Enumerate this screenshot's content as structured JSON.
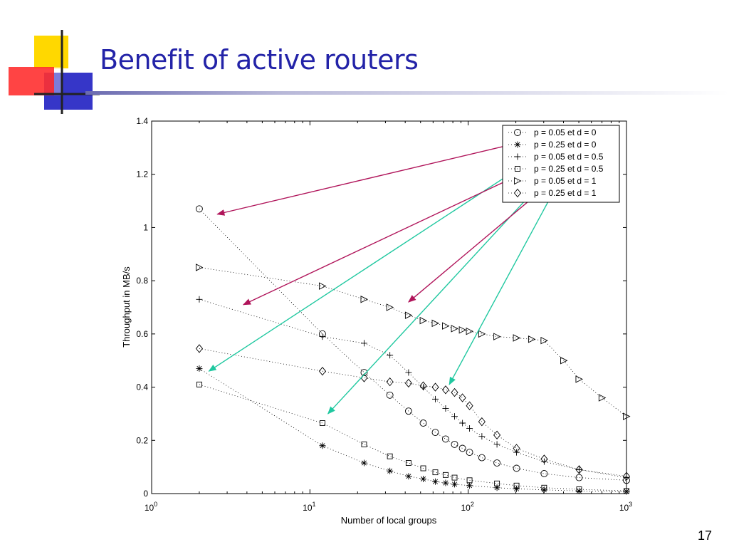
{
  "slide": {
    "title": "Benefit of active routers",
    "number": "17"
  },
  "chart_data": {
    "type": "scatter",
    "title": "",
    "xlabel": "Number of local groups",
    "ylabel": "Throughput in MB/s",
    "xscale": "log",
    "xlim": [
      1,
      1000
    ],
    "ylim": [
      0,
      1.4
    ],
    "yticks": [
      "0",
      "0.2",
      "0.4",
      "0.6",
      "0.8",
      "1",
      "1.2",
      "1.4"
    ],
    "xticks": [
      {
        "base": "10",
        "exp": "0"
      },
      {
        "base": "10",
        "exp": "1"
      },
      {
        "base": "10",
        "exp": "2"
      },
      {
        "base": "10",
        "exp": "3"
      }
    ],
    "grid": false,
    "legend_position": "top-right",
    "series": [
      {
        "name": "p = 0.05 et d = 0",
        "marker": "circle",
        "x": [
          2,
          12,
          22,
          32,
          42,
          52,
          62,
          72,
          82,
          92,
          102,
          122,
          152,
          202,
          302,
          502,
          1000
        ],
        "y": [
          1.07,
          0.6,
          0.455,
          0.37,
          0.31,
          0.265,
          0.23,
          0.205,
          0.185,
          0.17,
          0.155,
          0.135,
          0.115,
          0.095,
          0.075,
          0.06,
          0.05
        ]
      },
      {
        "name": "p = 0.25 et d = 0",
        "marker": "star",
        "x": [
          2,
          12,
          22,
          32,
          42,
          52,
          62,
          72,
          82,
          102,
          152,
          202,
          302,
          502,
          1000
        ],
        "y": [
          0.47,
          0.18,
          0.115,
          0.085,
          0.065,
          0.055,
          0.045,
          0.04,
          0.035,
          0.03,
          0.022,
          0.018,
          0.014,
          0.01,
          0.008
        ]
      },
      {
        "name": "p = 0.05 et d = 0.5",
        "marker": "plus",
        "x": [
          2,
          12,
          22,
          32,
          42,
          52,
          62,
          72,
          82,
          92,
          102,
          122,
          152,
          202,
          302,
          502,
          1000
        ],
        "y": [
          0.73,
          0.59,
          0.565,
          0.52,
          0.455,
          0.4,
          0.355,
          0.32,
          0.29,
          0.265,
          0.245,
          0.215,
          0.185,
          0.155,
          0.12,
          0.09,
          0.06
        ]
      },
      {
        "name": "p = 0.25 et d = 0.5",
        "marker": "square",
        "x": [
          2,
          12,
          22,
          32,
          42,
          52,
          62,
          72,
          82,
          102,
          152,
          202,
          302,
          502,
          1000
        ],
        "y": [
          0.41,
          0.265,
          0.185,
          0.14,
          0.115,
          0.095,
          0.08,
          0.07,
          0.06,
          0.05,
          0.038,
          0.03,
          0.022,
          0.016,
          0.01
        ]
      },
      {
        "name": "p = 0.05 et d = 1",
        "marker": "triangle-right",
        "x": [
          2,
          12,
          22,
          32,
          42,
          52,
          62,
          72,
          82,
          92,
          102,
          122,
          152,
          202,
          252,
          302,
          402,
          502,
          702,
          1000
        ],
        "y": [
          0.85,
          0.78,
          0.73,
          0.7,
          0.67,
          0.65,
          0.64,
          0.63,
          0.62,
          0.615,
          0.61,
          0.6,
          0.59,
          0.585,
          0.58,
          0.575,
          0.5,
          0.43,
          0.36,
          0.29
        ]
      },
      {
        "name": "p = 0.25 et d = 1",
        "marker": "diamond",
        "x": [
          2,
          12,
          22,
          32,
          42,
          52,
          62,
          72,
          82,
          92,
          102,
          122,
          152,
          202,
          302,
          502,
          1000
        ],
        "y": [
          0.545,
          0.46,
          0.435,
          0.42,
          0.415,
          0.405,
          0.4,
          0.39,
          0.38,
          0.36,
          0.33,
          0.27,
          0.22,
          0.17,
          0.13,
          0.09,
          0.065
        ]
      }
    ],
    "annotations": [
      {
        "series": "p = 0.05 et d = 0",
        "color": "#b0145a",
        "from": {
          "x": 350,
          "y": 1.35
        },
        "to": {
          "x": 2.6,
          "y": 1.05
        }
      },
      {
        "series": "p = 0.25 et d = 0",
        "color": "#20c8a0",
        "from": {
          "x": 350,
          "y": 1.31
        },
        "to": {
          "x": 2.3,
          "y": 0.46
        }
      },
      {
        "series": "p = 0.05 et d = 0.5",
        "color": "#b0145a",
        "from": {
          "x": 350,
          "y": 1.26
        },
        "to": {
          "x": 3.8,
          "y": 0.71
        }
      },
      {
        "series": "p = 0.25 et d = 0.5",
        "color": "#20c8a0",
        "from": {
          "x": 350,
          "y": 1.22
        },
        "to": {
          "x": 13,
          "y": 0.3
        }
      },
      {
        "series": "p = 0.05 et d = 1",
        "color": "#b0145a",
        "from": {
          "x": 350,
          "y": 1.18
        },
        "to": {
          "x": 42,
          "y": 0.72
        }
      },
      {
        "series": "p = 0.25 et d = 1",
        "color": "#20c8a0",
        "from": {
          "x": 350,
          "y": 1.14
        },
        "to": {
          "x": 76,
          "y": 0.41
        }
      }
    ]
  }
}
